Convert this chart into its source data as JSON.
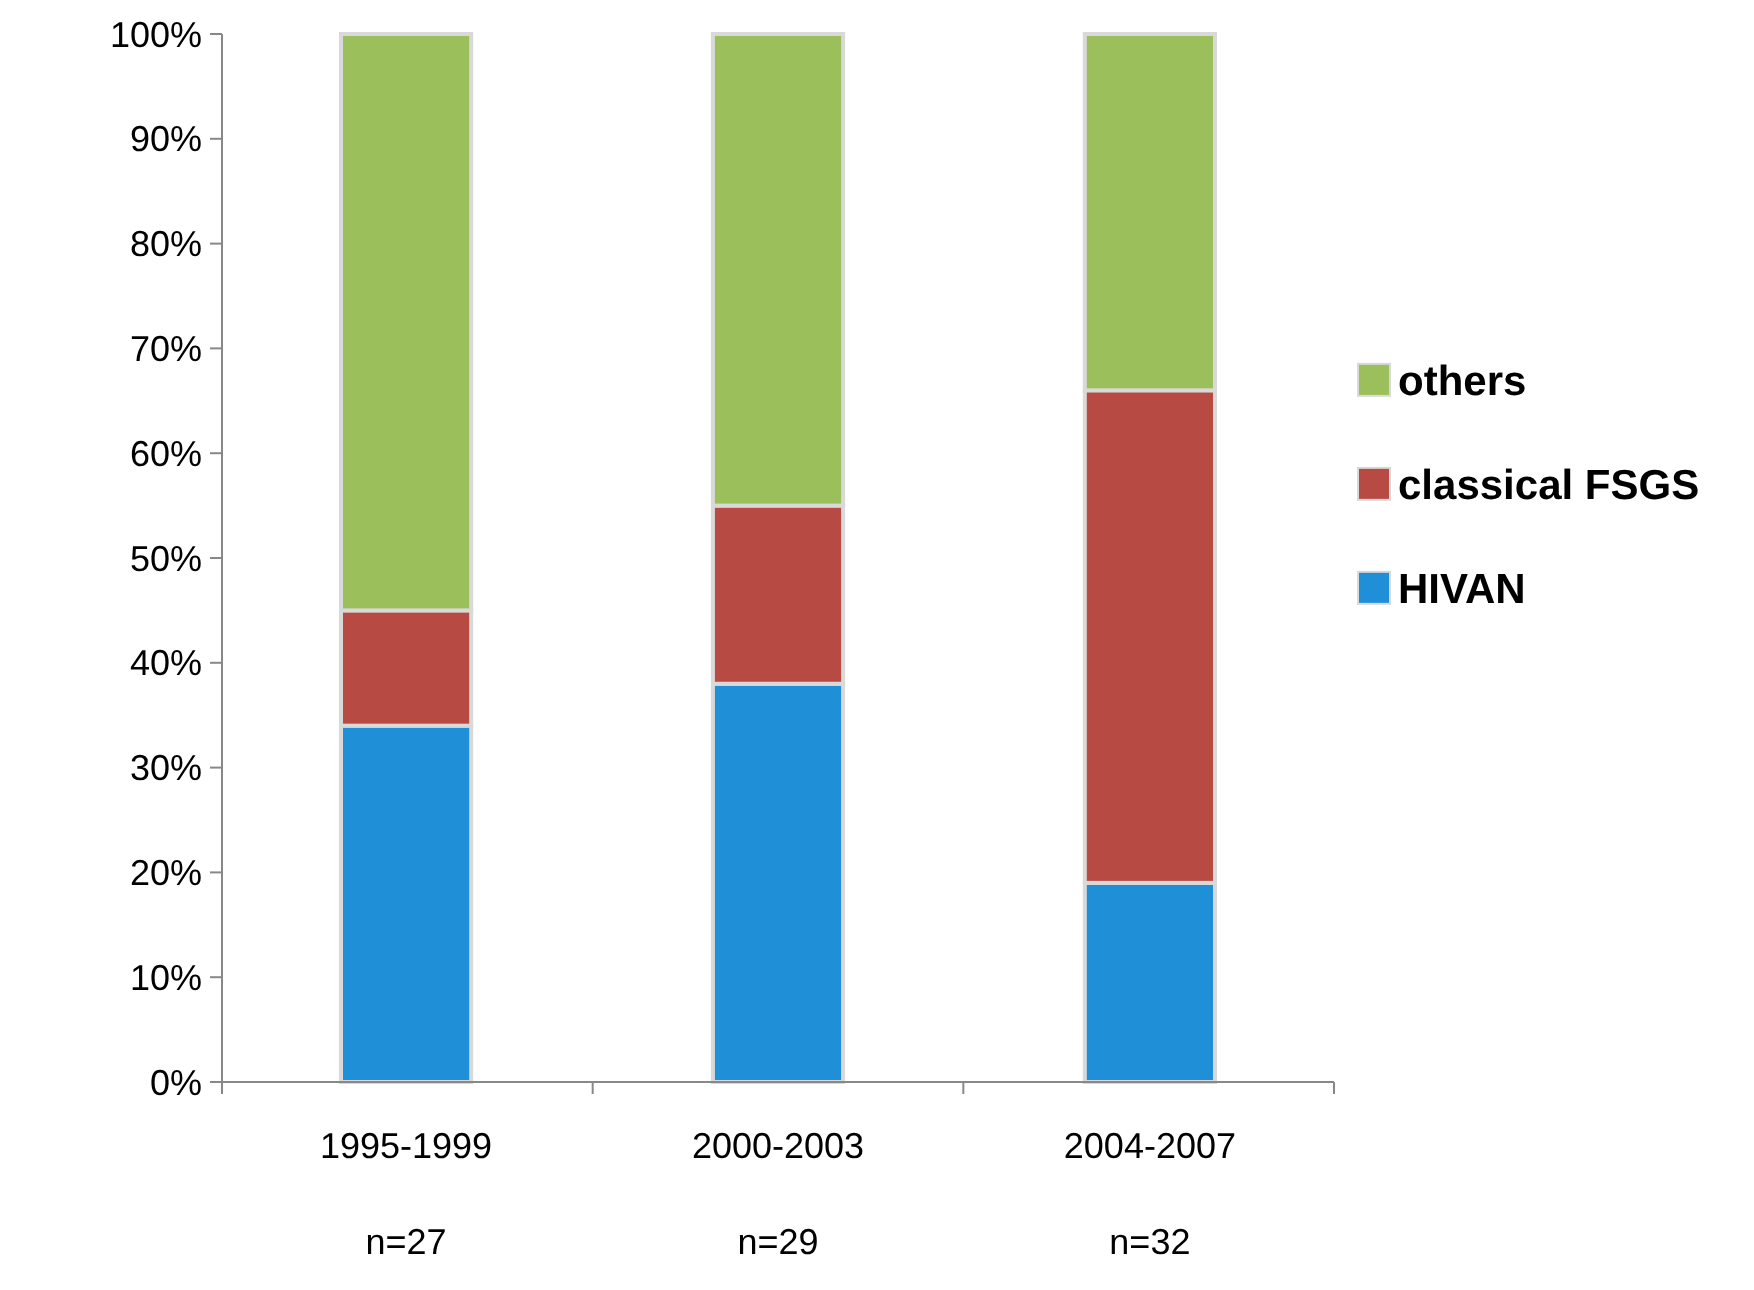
{
  "chart_data": {
    "type": "bar",
    "stacked": true,
    "categories": [
      "1995-1999\nn=27",
      "2000-2003\nn=29",
      "2004-2007\nn=32"
    ],
    "series": [
      {
        "name": "HIVAN",
        "color": "#1f8fd8",
        "values": [
          34,
          38,
          19
        ]
      },
      {
        "name": "classical FSGS",
        "color": "#b84a44",
        "values": [
          11,
          17,
          47
        ]
      },
      {
        "name": "others",
        "color": "#9bbf5a",
        "values": [
          55,
          45,
          34
        ]
      }
    ],
    "ylim": [
      0,
      100
    ],
    "yticks": [
      {
        "value": 0,
        "label": "0%"
      },
      {
        "value": 10,
        "label": "10%"
      },
      {
        "value": 20,
        "label": "20%"
      },
      {
        "value": 30,
        "label": "30%"
      },
      {
        "value": 40,
        "label": "40%"
      },
      {
        "value": 50,
        "label": "50%"
      },
      {
        "value": 60,
        "label": "60%"
      },
      {
        "value": 70,
        "label": "70%"
      },
      {
        "value": 80,
        "label": "80%"
      },
      {
        "value": 90,
        "label": "90%"
      },
      {
        "value": 100,
        "label": "100%"
      }
    ],
    "legend": "right"
  }
}
